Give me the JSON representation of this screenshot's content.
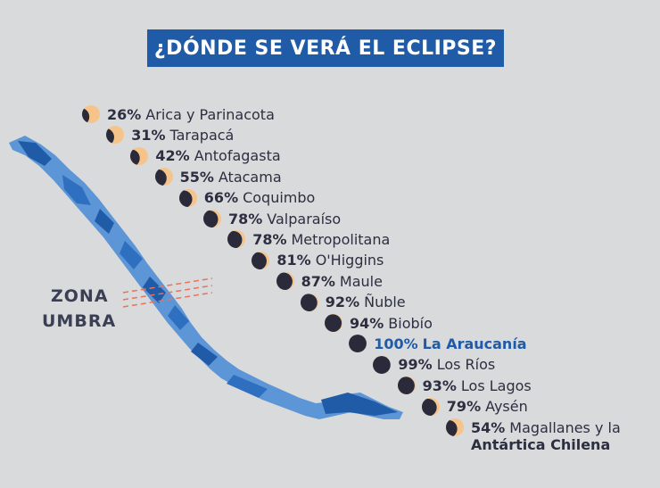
{
  "title": "¿DÓNDE SE VERÁ EL ECLIPSE?",
  "zone_label": {
    "line1": "ZONA",
    "line2": "UMBRA"
  },
  "colors": {
    "title_bg": "#1f5ba6",
    "sun": "#f6c48a",
    "moon": "#2a2a3a",
    "map_dark": "#1f5ba6",
    "map_light": "#5d96d6",
    "umbra_lines": "#e8735a"
  },
  "regions": [
    {
      "pct": "26%",
      "name": "Arica y Parinacota",
      "coverage": 0.26
    },
    {
      "pct": "31%",
      "name": "Tarapacá",
      "coverage": 0.31
    },
    {
      "pct": "42%",
      "name": "Antofagasta",
      "coverage": 0.42
    },
    {
      "pct": "55%",
      "name": "Atacama",
      "coverage": 0.55
    },
    {
      "pct": "66%",
      "name": "Coquimbo",
      "coverage": 0.66
    },
    {
      "pct": "78%",
      "name": "Valparaíso",
      "coverage": 0.78
    },
    {
      "pct": "78%",
      "name": "Metropolitana",
      "coverage": 0.78
    },
    {
      "pct": "81%",
      "name": "O'Higgins",
      "coverage": 0.81
    },
    {
      "pct": "87%",
      "name": "Maule",
      "coverage": 0.87
    },
    {
      "pct": "92%",
      "name": "Ñuble",
      "coverage": 0.92
    },
    {
      "pct": "94%",
      "name": "Biobío",
      "coverage": 0.94
    },
    {
      "pct": "100%",
      "name": "La Araucanía",
      "coverage": 1.0,
      "highlight": true
    },
    {
      "pct": "99%",
      "name": "Los Ríos",
      "coverage": 0.99
    },
    {
      "pct": "93%",
      "name": "Los Lagos",
      "coverage": 0.93
    },
    {
      "pct": "79%",
      "name": "Aysén",
      "coverage": 0.79
    },
    {
      "pct": "54%",
      "name": "Magallanes y la",
      "name_line2": "Antártica Chilena",
      "coverage": 0.54
    }
  ]
}
